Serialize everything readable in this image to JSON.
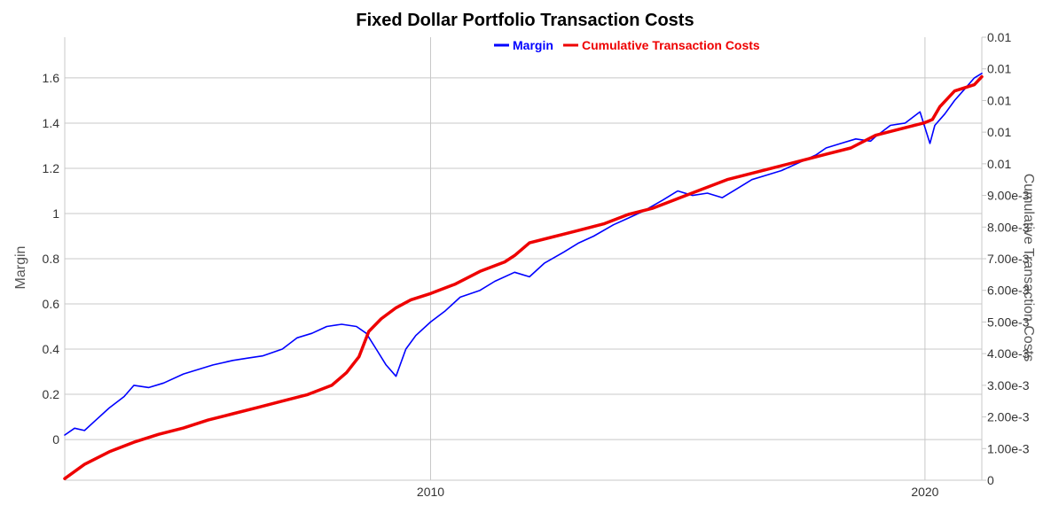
{
  "chart_data": {
    "type": "line",
    "title": "Fixed Dollar Portfolio Transaction Costs",
    "xlabel": "",
    "ylabel": "Margin",
    "y2label": "Cumulative Transaction Costs",
    "xlim": [
      2002.6,
      2021.15
    ],
    "ylim": [
      -0.18,
      1.78
    ],
    "y2lim": [
      0,
      0.014
    ],
    "x_ticks": [
      {
        "value": 2010,
        "label": "2010"
      },
      {
        "value": 2020,
        "label": "2020"
      }
    ],
    "y_ticks": [
      {
        "value": 0,
        "label": "0"
      },
      {
        "value": 0.2,
        "label": "0.2"
      },
      {
        "value": 0.4,
        "label": "0.4"
      },
      {
        "value": 0.6,
        "label": "0.6"
      },
      {
        "value": 0.8,
        "label": "0.8"
      },
      {
        "value": 1,
        "label": "1"
      },
      {
        "value": 1.2,
        "label": "1.2"
      },
      {
        "value": 1.4,
        "label": "1.4"
      },
      {
        "value": 1.6,
        "label": "1.6"
      }
    ],
    "y2_ticks": [
      {
        "value": 0,
        "label": "0"
      },
      {
        "value": 0.001,
        "label": "1.00e-3"
      },
      {
        "value": 0.002,
        "label": "2.00e-3"
      },
      {
        "value": 0.003,
        "label": "3.00e-3"
      },
      {
        "value": 0.004,
        "label": "4.00e-3"
      },
      {
        "value": 0.005,
        "label": "5.00e-3"
      },
      {
        "value": 0.006,
        "label": "6.00e-3"
      },
      {
        "value": 0.007,
        "label": "7.00e-3"
      },
      {
        "value": 0.008,
        "label": "8.00e-3"
      },
      {
        "value": 0.009,
        "label": "9.00e-3"
      },
      {
        "value": 0.01,
        "label": "0.01"
      },
      {
        "value": 0.011,
        "label": "0.01"
      },
      {
        "value": 0.012,
        "label": "0.01"
      },
      {
        "value": 0.013,
        "label": "0.01"
      },
      {
        "value": 0.014,
        "label": "0.01"
      }
    ],
    "grid": true,
    "legend": {
      "position": "top-center"
    },
    "colors": {
      "margin": "#0000ff",
      "costs": "#ee0000",
      "grid": "#c8c8c8"
    },
    "series": [
      {
        "name": "Margin",
        "axis": "left",
        "color": "#0000ff",
        "x": [
          2002.6,
          2002.8,
          2003.0,
          2003.2,
          2003.5,
          2003.8,
          2004.0,
          2004.3,
          2004.6,
          2005.0,
          2005.3,
          2005.6,
          2006.0,
          2006.3,
          2006.6,
          2007.0,
          2007.3,
          2007.6,
          2007.9,
          2008.2,
          2008.5,
          2008.7,
          2008.9,
          2009.1,
          2009.3,
          2009.5,
          2009.7,
          2010.0,
          2010.3,
          2010.6,
          2011.0,
          2011.3,
          2011.7,
          2012.0,
          2012.3,
          2012.7,
          2013.0,
          2013.3,
          2013.7,
          2014.0,
          2014.3,
          2014.7,
          2015.0,
          2015.3,
          2015.6,
          2015.9,
          2016.2,
          2016.5,
          2016.8,
          2017.1,
          2017.4,
          2017.8,
          2018.0,
          2018.3,
          2018.6,
          2018.9,
          2019.0,
          2019.3,
          2019.6,
          2019.9,
          2020.1,
          2020.2,
          2020.4,
          2020.6,
          2020.8,
          2021.0,
          2021.15
        ],
        "y": [
          0.02,
          0.05,
          0.04,
          0.08,
          0.14,
          0.19,
          0.24,
          0.23,
          0.25,
          0.29,
          0.31,
          0.33,
          0.35,
          0.36,
          0.37,
          0.4,
          0.45,
          0.47,
          0.5,
          0.51,
          0.5,
          0.47,
          0.4,
          0.33,
          0.28,
          0.4,
          0.46,
          0.52,
          0.57,
          0.63,
          0.66,
          0.7,
          0.74,
          0.72,
          0.78,
          0.83,
          0.87,
          0.9,
          0.95,
          0.98,
          1.01,
          1.06,
          1.1,
          1.08,
          1.09,
          1.07,
          1.11,
          1.15,
          1.17,
          1.19,
          1.22,
          1.26,
          1.29,
          1.31,
          1.33,
          1.32,
          1.34,
          1.39,
          1.4,
          1.45,
          1.31,
          1.39,
          1.44,
          1.5,
          1.55,
          1.6,
          1.62
        ]
      },
      {
        "name": "Cumulative Transaction Costs",
        "axis": "right",
        "color": "#ee0000",
        "x": [
          2002.6,
          2003.0,
          2003.5,
          2004.0,
          2004.5,
          2005.0,
          2005.5,
          2006.0,
          2006.5,
          2007.0,
          2007.5,
          2008.0,
          2008.3,
          2008.55,
          2008.75,
          2009.0,
          2009.3,
          2009.6,
          2010.0,
          2010.5,
          2011.0,
          2011.5,
          2011.7,
          2012.0,
          2012.5,
          2013.0,
          2013.5,
          2014.0,
          2014.5,
          2015.0,
          2015.5,
          2016.0,
          2016.5,
          2017.0,
          2017.5,
          2018.0,
          2018.5,
          2019.0,
          2019.5,
          2020.0,
          2020.15,
          2020.3,
          2020.6,
          2021.0,
          2021.15
        ],
        "y": [
          5e-05,
          0.0005,
          0.0009,
          0.0012,
          0.00145,
          0.00165,
          0.0019,
          0.0021,
          0.0023,
          0.0025,
          0.0027,
          0.003,
          0.0034,
          0.0039,
          0.0047,
          0.0051,
          0.00545,
          0.0057,
          0.0059,
          0.0062,
          0.0066,
          0.0069,
          0.0071,
          0.0075,
          0.0077,
          0.0079,
          0.0081,
          0.0084,
          0.0086,
          0.0089,
          0.0092,
          0.0095,
          0.0097,
          0.0099,
          0.0101,
          0.0103,
          0.0105,
          0.0109,
          0.0111,
          0.0113,
          0.0114,
          0.0118,
          0.0123,
          0.0125,
          0.01275
        ]
      }
    ]
  }
}
